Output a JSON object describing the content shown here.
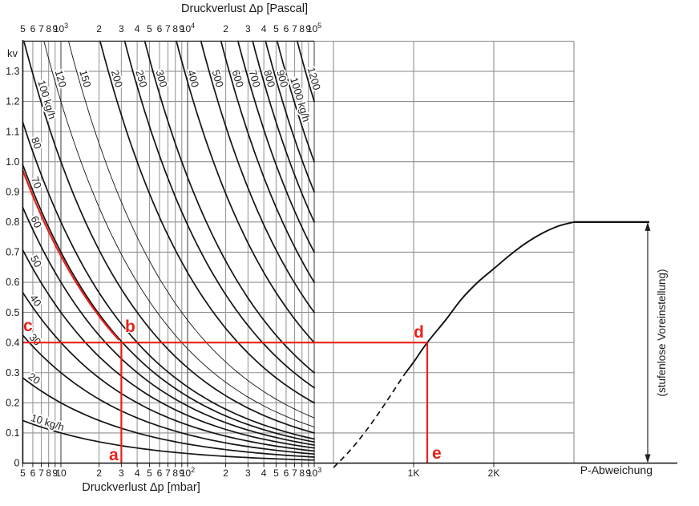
{
  "chart_data": {
    "type": "line",
    "description": "kv valve sizing nomogram: flow-rate curves over pressure loss (log scale) plus preset characteristic curve",
    "pascal_axis": {
      "title": "Druckverlust Δp [Pascal]",
      "scale": "log",
      "ticks": [
        {
          "v": 5,
          "t": "5"
        },
        {
          "v": 6,
          "t": "6"
        },
        {
          "v": 7,
          "t": "7"
        },
        {
          "v": 8,
          "t": "8"
        },
        {
          "v": 9,
          "t": "9"
        },
        {
          "v": 10,
          "t": "10",
          "sup": "3"
        },
        {
          "v": 20,
          "t": "2"
        },
        {
          "v": 30,
          "t": "3"
        },
        {
          "v": 40,
          "t": "4"
        },
        {
          "v": 50,
          "t": "5"
        },
        {
          "v": 60,
          "t": "6"
        },
        {
          "v": 70,
          "t": "7"
        },
        {
          "v": 80,
          "t": "8"
        },
        {
          "v": 90,
          "t": "9"
        },
        {
          "v": 100,
          "t": "10",
          "sup": "4"
        },
        {
          "v": 200,
          "t": "2"
        },
        {
          "v": 300,
          "t": "3"
        },
        {
          "v": 400,
          "t": "4"
        },
        {
          "v": 500,
          "t": "5"
        },
        {
          "v": 600,
          "t": "6"
        },
        {
          "v": 700,
          "t": "7"
        },
        {
          "v": 800,
          "t": "8"
        },
        {
          "v": 900,
          "t": "9"
        },
        {
          "v": 1000,
          "t": "10",
          "sup": "5"
        }
      ]
    },
    "mbar_axis": {
      "title": "Druckverlust Δp [mbar]",
      "scale": "log",
      "range": [
        5,
        1000
      ],
      "ticks": [
        {
          "v": 5,
          "t": "5"
        },
        {
          "v": 6,
          "t": "6"
        },
        {
          "v": 7,
          "t": "7"
        },
        {
          "v": 8,
          "t": "8"
        },
        {
          "v": 9,
          "t": "9"
        },
        {
          "v": 10,
          "t": "10"
        },
        {
          "v": 20,
          "t": "2"
        },
        {
          "v": 30,
          "t": "3"
        },
        {
          "v": 40,
          "t": "4"
        },
        {
          "v": 50,
          "t": "5"
        },
        {
          "v": 60,
          "t": "6"
        },
        {
          "v": 70,
          "t": "7"
        },
        {
          "v": 80,
          "t": "8"
        },
        {
          "v": 90,
          "t": "9"
        },
        {
          "v": 100,
          "t": "10",
          "sup": "2"
        },
        {
          "v": 200,
          "t": "2"
        },
        {
          "v": 300,
          "t": "3"
        },
        {
          "v": 400,
          "t": "4"
        },
        {
          "v": 500,
          "t": "5"
        },
        {
          "v": 600,
          "t": "6"
        },
        {
          "v": 700,
          "t": "7"
        },
        {
          "v": 800,
          "t": "8"
        },
        {
          "v": 900,
          "t": "9"
        },
        {
          "v": 1000,
          "t": "10",
          "sup": "3"
        }
      ]
    },
    "kv_axis": {
      "label": "kv",
      "min": 0,
      "max": 1.4,
      "gridline_step": 0.1,
      "ticks": [
        {
          "v": 0,
          "t": "0"
        },
        {
          "v": 0.1,
          "t": "0.1"
        },
        {
          "v": 0.2,
          "t": "0.2"
        },
        {
          "v": 0.3,
          "t": "0.3"
        },
        {
          "v": 0.4,
          "t": "0.4"
        },
        {
          "v": 0.5,
          "t": "0.5"
        },
        {
          "v": 0.6,
          "t": "0.6"
        },
        {
          "v": 0.7,
          "t": "0.7"
        },
        {
          "v": 0.8,
          "t": "0.8"
        },
        {
          "v": 0.9,
          "t": "0.9"
        },
        {
          "v": 1.0,
          "t": "1.0"
        },
        {
          "v": 1.1,
          "t": "1.1"
        },
        {
          "v": 1.2,
          "t": "1.2"
        },
        {
          "v": 1.3,
          "t": "1.3"
        }
      ]
    },
    "flow_curves": {
      "unit": "kg/h",
      "model": "kv = (Q/1000) / sqrt(dp_mbar/1000)",
      "dp_domain_mbar": [
        5,
        1000
      ],
      "kv_clip": 1.4,
      "curves": [
        {
          "q": 10,
          "label": "10 kg/h"
        },
        {
          "q": 20,
          "label": "20"
        },
        {
          "q": 30,
          "label": "30"
        },
        {
          "q": 40,
          "label": "40"
        },
        {
          "q": 50,
          "label": "50"
        },
        {
          "q": 60,
          "label": "60"
        },
        {
          "q": 70,
          "label": "70"
        },
        {
          "q": 80,
          "label": "80"
        },
        {
          "q": 100,
          "label": "100 kg/h"
        },
        {
          "q": 120,
          "label": "120",
          "thin": true
        },
        {
          "q": 150,
          "label": "150",
          "thin": true
        },
        {
          "q": 200,
          "label": "200"
        },
        {
          "q": 250,
          "label": "250"
        },
        {
          "q": 300,
          "label": "300"
        },
        {
          "q": 400,
          "label": "400"
        },
        {
          "q": 500,
          "label": "500"
        },
        {
          "q": 600,
          "label": "600"
        },
        {
          "q": 700,
          "label": "700"
        },
        {
          "q": 800,
          "label": "800"
        },
        {
          "q": 900,
          "label": "900"
        },
        {
          "q": 1000,
          "label": "1000 kg/h"
        },
        {
          "q": 1200,
          "label": "1200"
        }
      ]
    },
    "preset_section": {
      "xlabel": "P-Abweichung",
      "range_label": "(stufenlose Voreinstellung)",
      "ticks": [
        {
          "k": 1,
          "label": "1K"
        },
        {
          "k": 2,
          "label": "2K"
        }
      ],
      "k_gridlines": [
        0,
        1,
        2,
        3
      ],
      "plateau_kv": 0.8,
      "curve_dashed": [
        [
          0,
          -0.015
        ],
        [
          0.2,
          0.04
        ],
        [
          0.4,
          0.105
        ],
        [
          0.6,
          0.18
        ],
        [
          0.8,
          0.26
        ],
        [
          0.9,
          0.3
        ]
      ],
      "curve_solid": [
        [
          0.9,
          0.3
        ],
        [
          1.0,
          0.335
        ],
        [
          1.17,
          0.4
        ],
        [
          1.4,
          0.475
        ],
        [
          1.6,
          0.545
        ],
        [
          1.8,
          0.6
        ],
        [
          2.0,
          0.645
        ],
        [
          2.2,
          0.69
        ],
        [
          2.4,
          0.73
        ],
        [
          2.6,
          0.762
        ],
        [
          2.8,
          0.786
        ],
        [
          3.0,
          0.8
        ]
      ]
    },
    "red_path": {
      "color": "#e8211a",
      "flow_q": 70,
      "dp_mbar": 30,
      "kv": 0.4,
      "preset_k": 1.17,
      "labels": {
        "a": "a",
        "b": "b",
        "c": "c",
        "d": "d",
        "e": "e"
      }
    }
  }
}
